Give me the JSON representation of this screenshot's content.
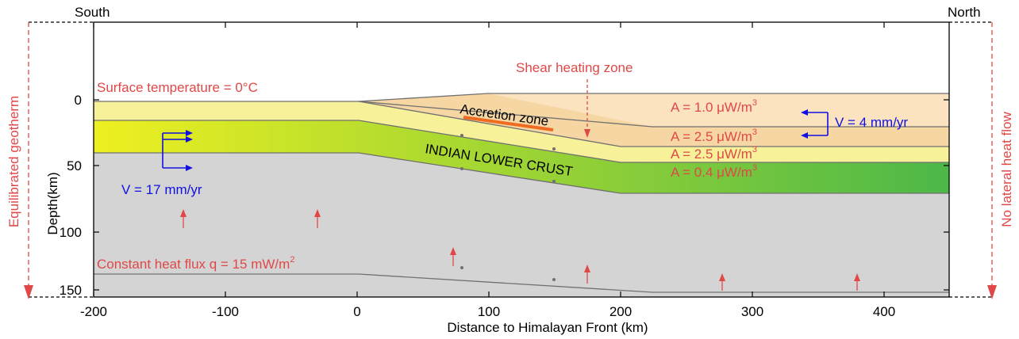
{
  "labels": {
    "south": "South",
    "north": "North",
    "surface_temp": "Surface temperature = 0°C",
    "shear_zone": "Shear heating zone",
    "accretion_zone": "Accretion zone",
    "lower_crust": "INDIAN LOWER CRUST",
    "v_south": "V = 17 mm/yr",
    "v_north": "V = 4 mm/yr",
    "heat_flux": "Constant heat flux q = 15 mW/m",
    "heat_flux_sup": "2",
    "left_side": "Equilibrated geotherm",
    "right_side": "No lateral heat flow",
    "xlabel": "Distance to Himalayan Front (km)",
    "ylabel": "Depth(km)"
  },
  "heat_production": [
    {
      "text": "A = 1.0 μW/m",
      "sup": "3"
    },
    {
      "text": "A = 2.5 μW/m",
      "sup": "3"
    },
    {
      "text": "A = 2.5 μW/m",
      "sup": "3"
    },
    {
      "text": "A = 0.4 μW/m",
      "sup": "3"
    }
  ],
  "axes": {
    "x_ticks": [
      "-200",
      "-100",
      "0",
      "100",
      "200",
      "300",
      "400"
    ],
    "y_ticks": [
      "0",
      "50",
      "100",
      "150"
    ],
    "xlim": [
      -200,
      450
    ],
    "ylim": [
      -60,
      152
    ]
  },
  "colors": {
    "model_red": "#e04848",
    "velocity_blue": "#1010e0",
    "mantle_gray": "#d4d4d4",
    "upper_crust": "#fbe3c0",
    "mid_crust": "#f7f29a",
    "lower_crust_start": "#eef020",
    "lower_crust_end": "#4cb848",
    "accretion_bar": "#ef6a22"
  }
}
